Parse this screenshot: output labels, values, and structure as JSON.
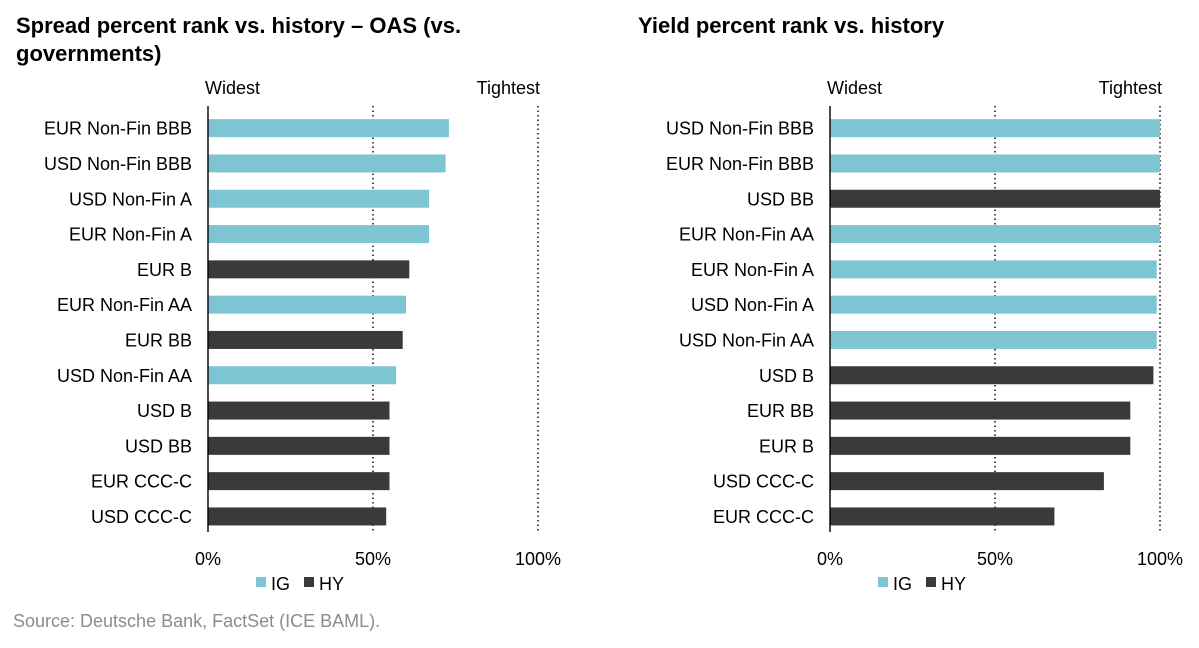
{
  "colors": {
    "IG": "#7ec5d3",
    "HY": "#3a3a38",
    "gridline": "#000000",
    "source_text": "#8c8c8c"
  },
  "chart_data": [
    {
      "type": "bar",
      "orientation": "horizontal",
      "title": "Spread percent rank vs. history – OAS (vs. governments)",
      "left_annotation": "Widest",
      "right_annotation": "Tightest",
      "xlim": [
        0,
        100
      ],
      "xticks": [
        "0%",
        "50%",
        "100%"
      ],
      "grid": "dotted vertical at 50% and 100%",
      "legend": {
        "placement": "bottom-left",
        "entries": [
          "IG",
          "HY"
        ]
      },
      "bars": [
        {
          "label": "EUR Non-Fin BBB",
          "value": 73,
          "group": "IG"
        },
        {
          "label": "USD Non-Fin BBB",
          "value": 72,
          "group": "IG"
        },
        {
          "label": "USD Non-Fin A",
          "value": 67,
          "group": "IG"
        },
        {
          "label": "EUR Non-Fin A",
          "value": 67,
          "group": "IG"
        },
        {
          "label": "EUR B",
          "value": 61,
          "group": "HY"
        },
        {
          "label": "EUR Non-Fin AA",
          "value": 60,
          "group": "IG"
        },
        {
          "label": "EUR BB",
          "value": 59,
          "group": "HY"
        },
        {
          "label": "USD Non-Fin AA",
          "value": 57,
          "group": "IG"
        },
        {
          "label": "USD B",
          "value": 55,
          "group": "HY"
        },
        {
          "label": "USD BB",
          "value": 55,
          "group": "HY"
        },
        {
          "label": "EUR CCC-C",
          "value": 55,
          "group": "HY"
        },
        {
          "label": "USD CCC-C",
          "value": 54,
          "group": "HY"
        }
      ]
    },
    {
      "type": "bar",
      "orientation": "horizontal",
      "title": "Yield percent rank vs. history",
      "left_annotation": "Widest",
      "right_annotation": "Tightest",
      "xlim": [
        0,
        100
      ],
      "xticks": [
        "0%",
        "50%",
        "100%"
      ],
      "grid": "dotted vertical at 50% and 100%",
      "legend": {
        "placement": "bottom-left",
        "entries": [
          "IG",
          "HY"
        ]
      },
      "bars": [
        {
          "label": "USD Non-Fin BBB",
          "value": 100,
          "group": "IG"
        },
        {
          "label": "EUR Non-Fin BBB",
          "value": 100,
          "group": "IG"
        },
        {
          "label": "USD BB",
          "value": 100,
          "group": "HY"
        },
        {
          "label": "EUR Non-Fin AA",
          "value": 100,
          "group": "IG"
        },
        {
          "label": "EUR Non-Fin A",
          "value": 99,
          "group": "IG"
        },
        {
          "label": "USD Non-Fin A",
          "value": 99,
          "group": "IG"
        },
        {
          "label": "USD Non-Fin AA",
          "value": 99,
          "group": "IG"
        },
        {
          "label": "USD B",
          "value": 98,
          "group": "HY"
        },
        {
          "label": "EUR BB",
          "value": 91,
          "group": "HY"
        },
        {
          "label": "EUR B",
          "value": 91,
          "group": "HY"
        },
        {
          "label": "USD CCC-C",
          "value": 83,
          "group": "HY"
        },
        {
          "label": "EUR CCC-C",
          "value": 68,
          "group": "HY"
        }
      ]
    }
  ],
  "source": "Source: Deutsche Bank, FactSet (ICE BAML)."
}
